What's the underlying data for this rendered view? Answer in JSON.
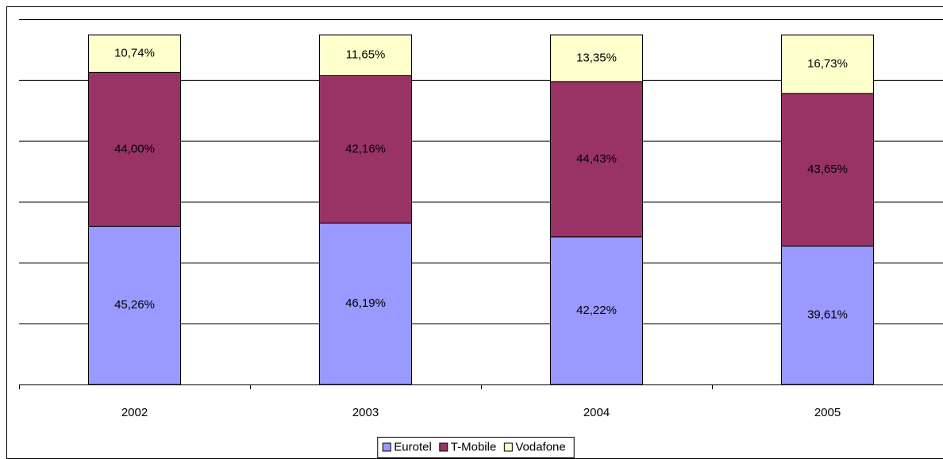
{
  "chart_data": {
    "type": "stacked-bar",
    "categories": [
      "2002",
      "2003",
      "2004",
      "2005"
    ],
    "series": [
      {
        "name": "Eurotel",
        "color": "#9999ff",
        "values": [
          45.26,
          46.19,
          42.22,
          39.61
        ],
        "value_labels": [
          "45,26%",
          "46,19%",
          "42,22%",
          "39,61%"
        ]
      },
      {
        "name": "T-Mobile",
        "color": "#993366",
        "values": [
          44.0,
          42.16,
          44.43,
          43.65
        ],
        "value_labels": [
          "44,00%",
          "42,16%",
          "44,43%",
          "43,65%"
        ]
      },
      {
        "name": "Vodafone",
        "color": "#ffffcc",
        "values": [
          10.74,
          11.65,
          13.35,
          16.73
        ],
        "value_labels": [
          "10,74%",
          "11,65%",
          "13,35%",
          "16,73%"
        ]
      }
    ],
    "grid": true,
    "legend": "bottom"
  }
}
